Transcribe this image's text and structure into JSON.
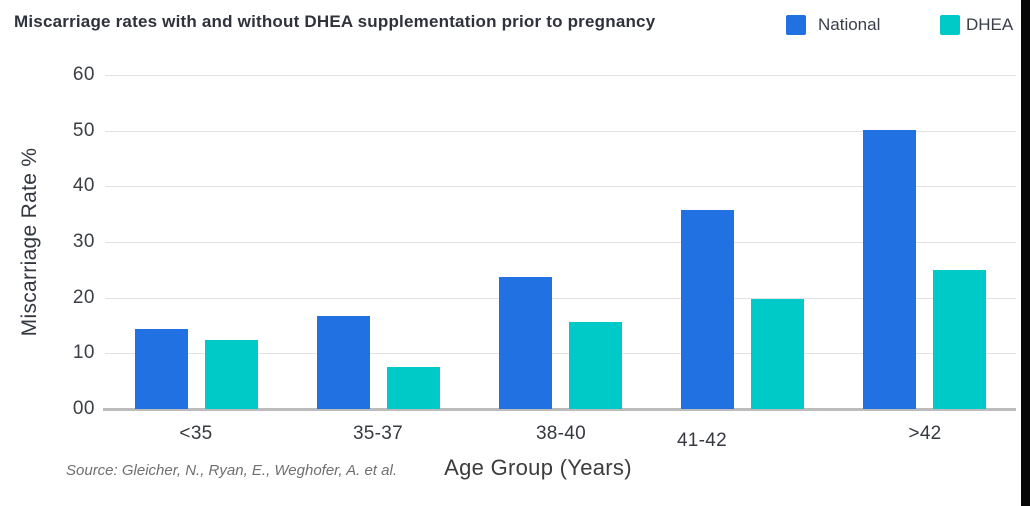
{
  "title": "Miscarriage rates with and without DHEA supplementation prior to pregnancy",
  "source": "Source: Gleicher, N., Ryan, E., Weghofer, A. et al.",
  "legend": [
    {
      "label": "National",
      "color": "#2171E2"
    },
    {
      "label": "DHEA",
      "color": "#00CAC8"
    }
  ],
  "colors": {
    "national": "#2171E2",
    "dhea": "#00CAC8",
    "gridline": "#E2E2E2",
    "baseline": "#BCBCBC",
    "title_text": "#2F323C",
    "tick_text": "#3B3E44",
    "source_text": "#6F6F6F"
  },
  "chart_data": {
    "type": "bar",
    "title": "Miscarriage rates with and without DHEA supplementation prior to pregnancy",
    "categories": [
      "<35",
      "35-37",
      "38-40",
      "41-42",
      ">42"
    ],
    "series": [
      {
        "name": "National",
        "color": "#2171E2",
        "values": [
          14.3,
          16.7,
          23.8,
          35.8,
          50.2
        ]
      },
      {
        "name": "DHEA",
        "color": "#00CAC8",
        "values": [
          12.4,
          7.5,
          15.7,
          19.8,
          25.0
        ]
      }
    ],
    "xlabel": "Age Group (Years)",
    "ylabel": "Miscarriage Rate %",
    "ylim": [
      0,
      60
    ],
    "ytick_values": [
      0,
      10,
      20,
      30,
      40,
      50,
      60
    ],
    "ytick_labels": [
      "00",
      "10",
      "20",
      "30",
      "40",
      "50",
      "60"
    ],
    "grid": true,
    "legend_position": "top-right",
    "annotation": "Source: Gleicher, N., Ryan, E., Weghofer, A. et al."
  }
}
